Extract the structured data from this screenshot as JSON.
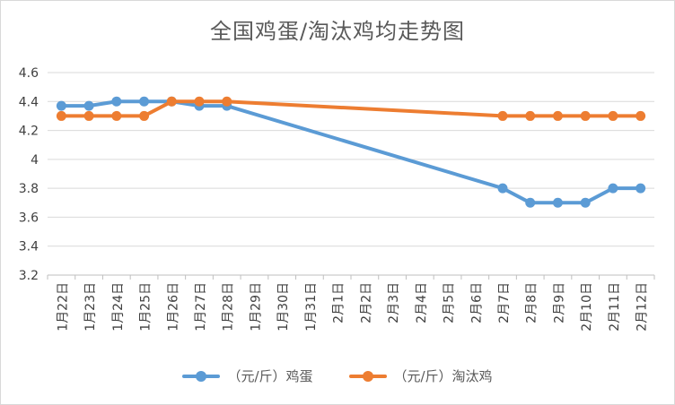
{
  "chart_data": {
    "type": "line",
    "title": "全国鸡蛋/淘汰鸡均走势图",
    "categories": [
      "1月22日",
      "1月23日",
      "1月24日",
      "1月25日",
      "1月26日",
      "1月27日",
      "1月28日",
      "1月29日",
      "1月30日",
      "1月31日",
      "2月1日",
      "2月2日",
      "2月3日",
      "2月4日",
      "2月5日",
      "2月6日",
      "2月7日",
      "2月8日",
      "2月9日",
      "2月10日",
      "2月11日",
      "2月12日"
    ],
    "ylim": [
      3.2,
      4.6
    ],
    "yticks": [
      "3.2",
      "3.4",
      "3.6",
      "3.8",
      "4",
      "4.2",
      "4.4",
      "4.6"
    ],
    "grid": true,
    "legend_position": "bottom",
    "series": [
      {
        "name": "（元/斤）鸡蛋",
        "color": "#5B9BD5",
        "values": [
          4.37,
          4.37,
          4.4,
          4.4,
          4.4,
          4.37,
          4.37,
          null,
          null,
          null,
          null,
          null,
          null,
          null,
          null,
          null,
          3.8,
          3.7,
          3.7,
          3.7,
          3.8,
          3.8
        ]
      },
      {
        "name": "（元/斤）淘汰鸡",
        "color": "#ED7D31",
        "values": [
          4.3,
          4.3,
          4.3,
          4.3,
          4.4,
          4.4,
          4.4,
          null,
          null,
          null,
          null,
          null,
          null,
          null,
          null,
          null,
          4.3,
          4.3,
          4.3,
          4.3,
          4.3,
          4.3
        ]
      }
    ]
  }
}
